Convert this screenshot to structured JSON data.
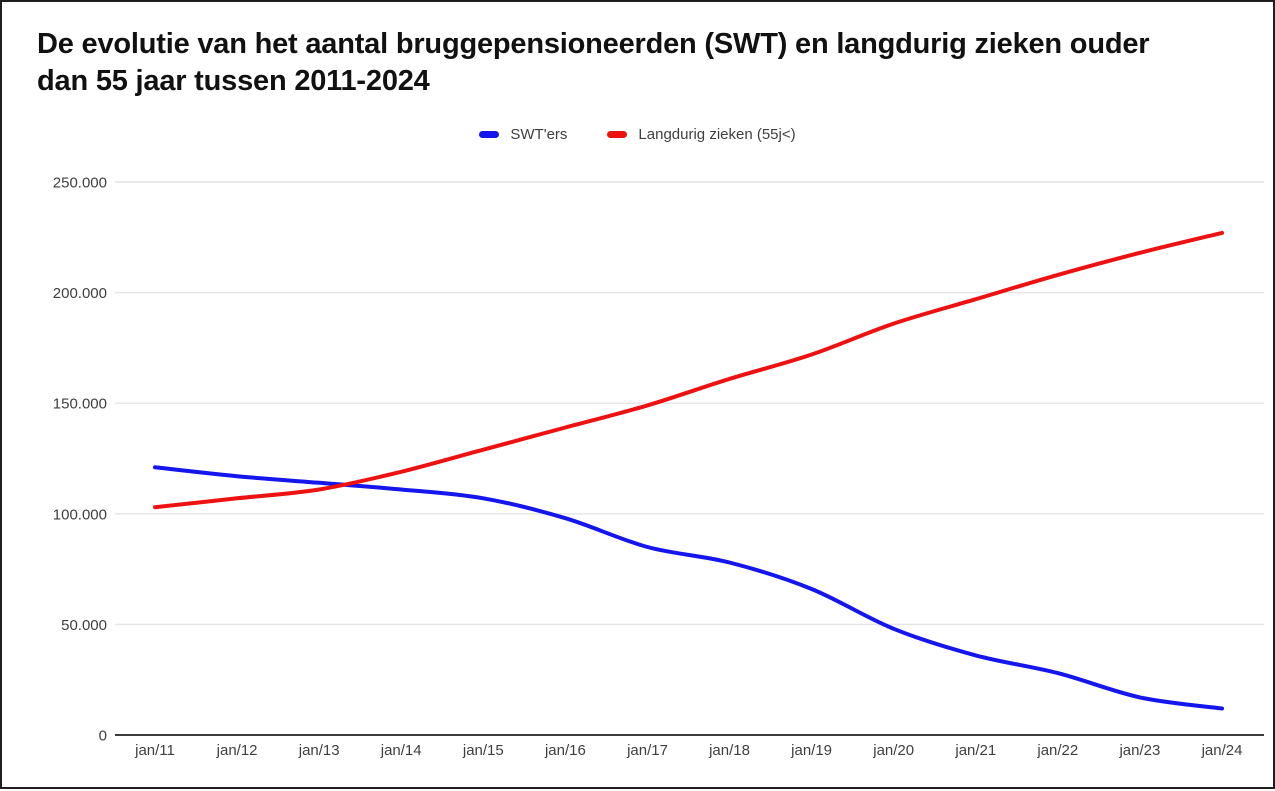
{
  "chart": {
    "title_line1": "De evolutie van het aantal bruggepensioneerden (SWT) en langdurig zieken ouder",
    "title_line2": "dan 55 jaar tussen 2011-2024"
  },
  "chart_data": {
    "type": "line",
    "title": "De evolutie van het aantal bruggepensioneerden (SWT) en langdurig zieken ouder dan 55 jaar tussen 2011-2024",
    "categories": [
      "jan/11",
      "jan/12",
      "jan/13",
      "jan/14",
      "jan/15",
      "jan/16",
      "jan/17",
      "jan/18",
      "jan/19",
      "jan/20",
      "jan/21",
      "jan/22",
      "jan/23",
      "jan/24"
    ],
    "series": [
      {
        "name": "SWT'ers",
        "color": "#1515ee",
        "values": [
          121000,
          117000,
          114000,
          111000,
          107000,
          98000,
          85000,
          78000,
          66000,
          48000,
          36000,
          28000,
          17000,
          12000
        ]
      },
      {
        "name": "Langdurig zieken (55j<)",
        "color": "#ee1111",
        "values": [
          103000,
          107000,
          111000,
          119000,
          129000,
          139000,
          149000,
          161000,
          172000,
          186000,
          197000,
          208000,
          218000,
          227000
        ]
      }
    ],
    "xlabel": "",
    "ylabel": "",
    "ylim": [
      0,
      250000
    ],
    "y_ticks": [
      0,
      50000,
      100000,
      150000,
      200000,
      250000
    ],
    "y_tick_labels": [
      "0",
      "50.000",
      "100.000",
      "150.000",
      "200.000",
      "250.000"
    ],
    "grid": true,
    "legend_position": "top",
    "smooth": true
  },
  "styles": {
    "grid_color": "#e4e4e4",
    "axis_line_color": "#3d3d3d",
    "axis_text_color": "#3f3f3f",
    "title_color": "#111111"
  }
}
